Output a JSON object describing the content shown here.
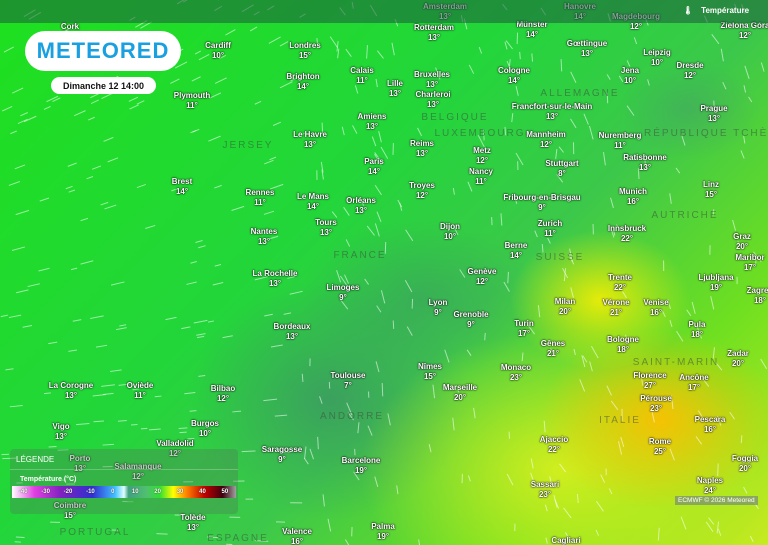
{
  "brand": "METEORED",
  "datetime": "Dimanche 12 14:00",
  "layer": {
    "label": "Température",
    "icon": "thermometer-icon"
  },
  "legend": {
    "title": "LÉGENDE",
    "unit": "Température (°C)",
    "ticks": [
      "-40",
      "-30",
      "-20",
      "-10",
      "0",
      "10",
      "20",
      "30",
      "40",
      "50"
    ]
  },
  "credit": "ECMWF © 2026 Meteored",
  "cities": [
    {
      "name": "Cork",
      "temp": ""
    },
    {
      "name": "Amsterdam",
      "temp": "13°"
    },
    {
      "name": "Hanovre",
      "temp": "14°"
    },
    {
      "name": "Magdebourg",
      "temp": "12°"
    },
    {
      "name": "Cardiff",
      "temp": "10°"
    },
    {
      "name": "Londres",
      "temp": "15°"
    },
    {
      "name": "Rotterdam",
      "temp": "13°"
    },
    {
      "name": "Münster",
      "temp": "14°"
    },
    {
      "name": "Zielona Góra",
      "temp": "12°"
    },
    {
      "name": "Brighton",
      "temp": "14°"
    },
    {
      "name": "Calais",
      "temp": "11°"
    },
    {
      "name": "Plymouth",
      "temp": "11°"
    },
    {
      "name": "Lille",
      "temp": "13°"
    },
    {
      "name": "Bruxelles",
      "temp": "13°"
    },
    {
      "name": "Charleroi",
      "temp": "13°"
    },
    {
      "name": "Cologne",
      "temp": "14°"
    },
    {
      "name": "Gœttingue",
      "temp": "13°"
    },
    {
      "name": "Leipzig",
      "temp": "10°"
    },
    {
      "name": "Jena",
      "temp": "10°"
    },
    {
      "name": "Dresde",
      "temp": "12°"
    },
    {
      "name": "Amiens",
      "temp": "13°"
    },
    {
      "name": "Le Havre",
      "temp": "13°"
    },
    {
      "name": "Francfort-sur-le-Main",
      "temp": "13°"
    },
    {
      "name": "Prague",
      "temp": "13°"
    },
    {
      "name": "Paris",
      "temp": "14°"
    },
    {
      "name": "Reims",
      "temp": "13°"
    },
    {
      "name": "Metz",
      "temp": "12°"
    },
    {
      "name": "Mannheim",
      "temp": "12°"
    },
    {
      "name": "Nuremberg",
      "temp": "11°"
    },
    {
      "name": "Ratisbonne",
      "temp": "13°"
    },
    {
      "name": "Brest",
      "temp": "14°"
    },
    {
      "name": "Rennes",
      "temp": "11°"
    },
    {
      "name": "Le Mans",
      "temp": "14°"
    },
    {
      "name": "Orléans",
      "temp": "13°"
    },
    {
      "name": "Troyes",
      "temp": "12°"
    },
    {
      "name": "Nancy",
      "temp": "11°"
    },
    {
      "name": "Stuttgart",
      "temp": "8°"
    },
    {
      "name": "Linz",
      "temp": "15°"
    },
    {
      "name": "Munich",
      "temp": "16°"
    },
    {
      "name": "Fribourg-en-Brisgau",
      "temp": "9°"
    },
    {
      "name": "Nantes",
      "temp": "13°"
    },
    {
      "name": "Tours",
      "temp": "13°"
    },
    {
      "name": "Dijon",
      "temp": "10°"
    },
    {
      "name": "Zurich",
      "temp": "11°"
    },
    {
      "name": "Innsbruck",
      "temp": "22°"
    },
    {
      "name": "Graz",
      "temp": "20°"
    },
    {
      "name": "Berne",
      "temp": "14°"
    },
    {
      "name": "Maribor",
      "temp": "17°"
    },
    {
      "name": "La Rochelle",
      "temp": "13°"
    },
    {
      "name": "Genève",
      "temp": "12°"
    },
    {
      "name": "Trente",
      "temp": "22°"
    },
    {
      "name": "Ljubljana",
      "temp": "19°"
    },
    {
      "name": "Zagreb",
      "temp": "18°"
    },
    {
      "name": "Limoges",
      "temp": "9°"
    },
    {
      "name": "Lyon",
      "temp": "9°"
    },
    {
      "name": "Milan",
      "temp": "20°"
    },
    {
      "name": "Vérone",
      "temp": "21°"
    },
    {
      "name": "Venise",
      "temp": "16°"
    },
    {
      "name": "Grenoble",
      "temp": "9°"
    },
    {
      "name": "Turin",
      "temp": "17°"
    },
    {
      "name": "Pula",
      "temp": "18°"
    },
    {
      "name": "Bordeaux",
      "temp": "13°"
    },
    {
      "name": "Gênes",
      "temp": "21°"
    },
    {
      "name": "Bologne",
      "temp": "18°"
    },
    {
      "name": "Zadar",
      "temp": "20°"
    },
    {
      "name": "Toulouse",
      "temp": "7°"
    },
    {
      "name": "Nîmes",
      "temp": "15°"
    },
    {
      "name": "Monaco",
      "temp": "23°"
    },
    {
      "name": "Florence",
      "temp": "27°"
    },
    {
      "name": "Ancône",
      "temp": "17°"
    },
    {
      "name": "Marseille",
      "temp": "20°"
    },
    {
      "name": "La Corogne",
      "temp": "13°"
    },
    {
      "name": "Oviède",
      "temp": "11°"
    },
    {
      "name": "Bilbao",
      "temp": "12°"
    },
    {
      "name": "Pérouse",
      "temp": "23°"
    },
    {
      "name": "Pescara",
      "temp": "16°"
    },
    {
      "name": "Burgos",
      "temp": "10°"
    },
    {
      "name": "Vigo",
      "temp": "13°"
    },
    {
      "name": "Ajaccio",
      "temp": "22°"
    },
    {
      "name": "Rome",
      "temp": "25°"
    },
    {
      "name": "Foggia",
      "temp": "20°"
    },
    {
      "name": "Saragosse",
      "temp": "9°"
    },
    {
      "name": "Valladolid",
      "temp": "12°"
    },
    {
      "name": "Barcelone",
      "temp": "19°"
    },
    {
      "name": "Porto",
      "temp": "13°"
    },
    {
      "name": "Salamanque",
      "temp": "12°"
    },
    {
      "name": "Naples",
      "temp": "24°"
    },
    {
      "name": "Sassari",
      "temp": "23°"
    },
    {
      "name": "Coimbre",
      "temp": "15°"
    },
    {
      "name": "Tolède",
      "temp": "13°"
    },
    {
      "name": "Valence",
      "temp": "16°"
    },
    {
      "name": "Palma",
      "temp": "19°"
    },
    {
      "name": "Cagliari",
      "temp": ""
    }
  ],
  "countries": [
    "BELGIQUE",
    "ALLEMAGNE",
    "LUXEMBOURG",
    "RÉPUBLIQUE TCHÈQUE",
    "FRANCE",
    "SUISSE",
    "AUTRICHE",
    "ITALIE",
    "PORTUGAL",
    "ESPAGNE",
    "ANDORRE",
    "JERSEY",
    "SAINT-MARIN"
  ]
}
